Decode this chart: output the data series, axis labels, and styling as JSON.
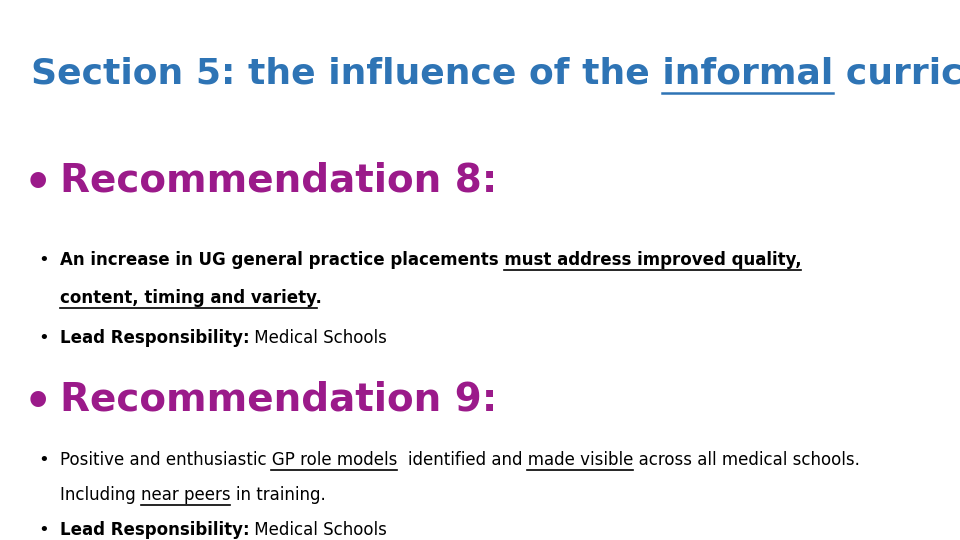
{
  "bg_color": "#ffffff",
  "title_color": "#2E74B5",
  "title_fontsize": 26,
  "rec_color": "#9B1A8A",
  "rec_fontsize": 28,
  "body_fontsize": 12,
  "body_bold_fontsize": 12,
  "body_color": "#000000"
}
